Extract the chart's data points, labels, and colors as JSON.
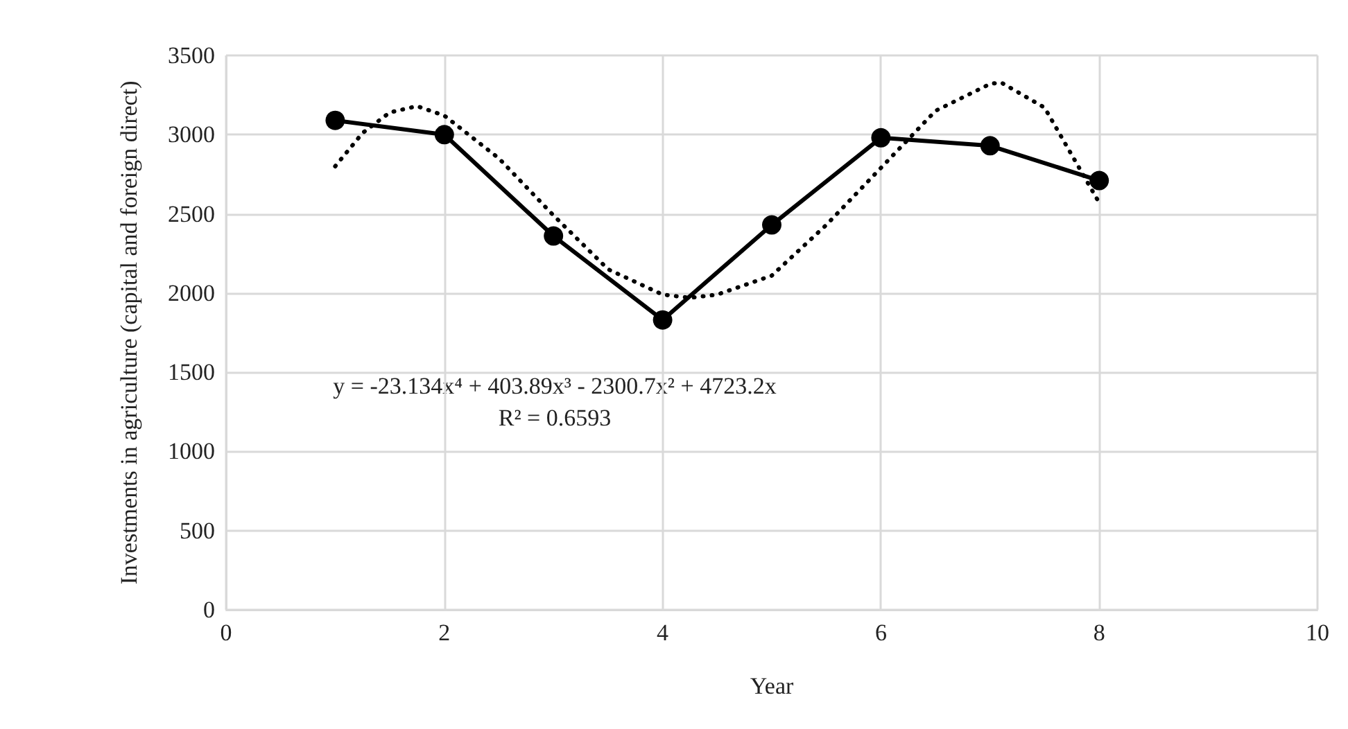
{
  "chart_data": {
    "type": "line",
    "xlabel": "Year",
    "ylabel": "Investments in agriculture (capital and foreign direct)",
    "xlim": [
      0,
      10
    ],
    "xticks": [
      0,
      2,
      4,
      6,
      8,
      10
    ],
    "ylim": [
      0,
      3500
    ],
    "yticks": [
      0,
      500,
      1000,
      1500,
      2000,
      2500,
      3000,
      3500
    ],
    "grid": true,
    "annotations": [
      "y = -23.134x⁴ + 403.89x³ - 2300.7x² + 4723.2x",
      "R² = 0.6593"
    ],
    "series": [
      {
        "color": "#000000",
        "marker": "circle",
        "line_style": "solid",
        "x": [
          1,
          2,
          3,
          4,
          5,
          6,
          7,
          8
        ],
        "values": [
          3090,
          3000,
          2360,
          1830,
          2430,
          2980,
          2930,
          2710
        ]
      },
      {
        "color": "#000000",
        "marker": "none",
        "line_style": "dotted",
        "x": [
          1,
          1.25,
          1.5,
          1.75,
          2,
          2.5,
          3,
          3.5,
          4,
          4.25,
          4.5,
          5,
          5.5,
          6,
          6.5,
          7,
          7.1,
          7.5,
          8
        ],
        "values": [
          2800,
          3010,
          3140,
          3180,
          3120,
          2850,
          2490,
          2150,
          1990,
          1970,
          1990,
          2110,
          2430,
          2790,
          3150,
          3320,
          3330,
          3170,
          2570
        ]
      }
    ]
  }
}
